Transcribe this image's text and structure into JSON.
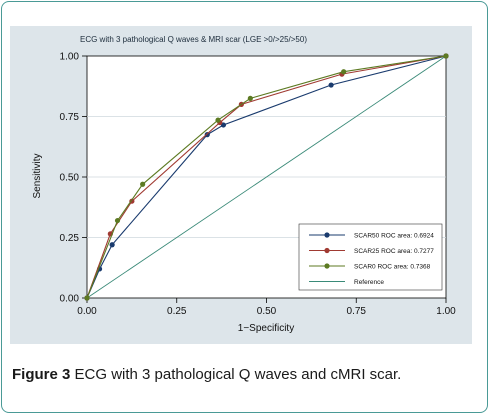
{
  "chart_data": {
    "type": "line",
    "title": "ECG with 3 pathological Q waves & MRI scar (LGE >0/>25/>50)",
    "xlabel": "1−Specificity",
    "ylabel": "Sensitivity",
    "xlim": [
      0,
      1
    ],
    "ylim": [
      0,
      1
    ],
    "x_ticks": [
      "0.00",
      "0.25",
      "0.50",
      "0.75",
      "1.00"
    ],
    "y_ticks": [
      "0.00",
      "0.25",
      "0.50",
      "0.75",
      "1.00"
    ],
    "grid": "horizontal",
    "legend_position": "bottom-right",
    "series": [
      {
        "name": "SCAR50 ROC area: 0.6924",
        "color": "#1a3b6e",
        "marker": true,
        "points": [
          [
            0,
            0
          ],
          [
            0.035,
            0.12
          ],
          [
            0.07,
            0.22
          ],
          [
            0.335,
            0.675
          ],
          [
            0.38,
            0.715
          ],
          [
            0.68,
            0.88
          ],
          [
            1,
            1
          ]
        ]
      },
      {
        "name": "SCAR25 ROC area: 0.7277",
        "color": "#a03a32",
        "marker": true,
        "points": [
          [
            0,
            0
          ],
          [
            0.065,
            0.265
          ],
          [
            0.125,
            0.4
          ],
          [
            0.37,
            0.725
          ],
          [
            0.43,
            0.8
          ],
          [
            0.71,
            0.925
          ],
          [
            1,
            1
          ]
        ]
      },
      {
        "name": "SCAR0 ROC area: 0.7368",
        "color": "#5c7a22",
        "marker": true,
        "points": [
          [
            0,
            0
          ],
          [
            0.085,
            0.32
          ],
          [
            0.155,
            0.47
          ],
          [
            0.365,
            0.735
          ],
          [
            0.455,
            0.825
          ],
          [
            0.715,
            0.935
          ],
          [
            1,
            1
          ]
        ]
      },
      {
        "name": "Reference",
        "color": "#3a8a78",
        "marker": false,
        "points": [
          [
            0,
            0
          ],
          [
            1,
            1
          ]
        ]
      }
    ]
  },
  "caption": {
    "label": "Figure 3",
    "text": " ECG with 3 pathological Q waves and cMRI scar."
  }
}
